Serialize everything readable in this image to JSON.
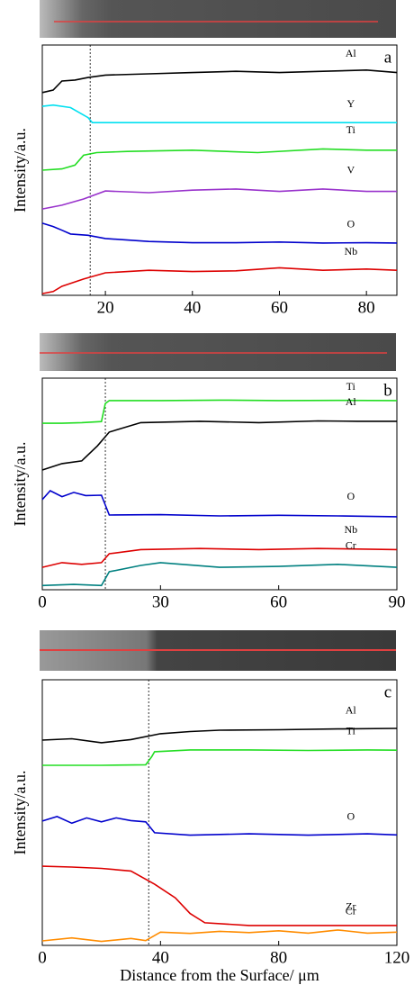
{
  "chart_data": [
    {
      "type": "line",
      "panel_label": "a",
      "ylabel": "Intensity/a.u.",
      "xlim": [
        5.5,
        87
      ],
      "xticks": [
        20,
        40,
        60,
        80
      ],
      "ylim": [
        0,
        100
      ],
      "vline": 16.5,
      "series": [
        {
          "name": "Al",
          "color": "#000000",
          "x": [
            5.5,
            8,
            10,
            13,
            16,
            20,
            30,
            40,
            50,
            60,
            70,
            80,
            87
          ],
          "values": [
            81,
            82,
            85.6,
            86,
            87,
            88,
            88.5,
            89,
            89.5,
            89,
            89.5,
            90,
            89
          ]
        },
        {
          "name": "Y",
          "color": "#00e0f0",
          "x": [
            5.5,
            8,
            12,
            14,
            16,
            17,
            30,
            50,
            70,
            87
          ],
          "values": [
            75.5,
            76,
            75,
            73,
            71,
            69,
            69,
            69,
            69,
            69
          ]
        },
        {
          "name": "Ti",
          "color": "#22dd22",
          "x": [
            5.5,
            10,
            13,
            15,
            18,
            25,
            40,
            55,
            70,
            80,
            87
          ],
          "values": [
            50,
            50.5,
            52,
            56,
            57,
            57.5,
            58,
            57,
            58.5,
            58,
            58
          ]
        },
        {
          "name": "V",
          "color": "#9933cc",
          "x": [
            5.5,
            10,
            15,
            20,
            30,
            40,
            50,
            60,
            70,
            80,
            87
          ],
          "values": [
            34.5,
            36,
            38.5,
            41.7,
            41,
            42,
            42.5,
            41.5,
            42.5,
            41.5,
            41.5
          ]
        },
        {
          "name": "O",
          "color": "#0000cc",
          "x": [
            5.5,
            8,
            10,
            12,
            16,
            20,
            30,
            40,
            50,
            60,
            70,
            80,
            87
          ],
          "values": [
            28.8,
            27.5,
            26,
            24.5,
            24,
            22.7,
            21.5,
            21,
            21,
            21.3,
            20.9,
            21,
            20.9
          ]
        },
        {
          "name": "Nb",
          "color": "#dd0000",
          "x": [
            5.5,
            8,
            10,
            15,
            20,
            30,
            40,
            50,
            60,
            70,
            80,
            87
          ],
          "values": [
            0.7,
            1.5,
            3.6,
            6.5,
            9,
            10,
            9.5,
            9.8,
            11,
            10,
            10.5,
            10
          ]
        }
      ]
    },
    {
      "type": "line",
      "panel_label": "b",
      "ylabel": "Intensity/a.u.",
      "xlim": [
        0,
        90
      ],
      "xticks": [
        0,
        30,
        60,
        90
      ],
      "ylim": [
        0,
        100
      ],
      "vline": 16,
      "series": [
        {
          "name": "Ti",
          "color": "#22dd22",
          "x": [
            0,
            5,
            10,
            15,
            16,
            17,
            30,
            45,
            60,
            75,
            90
          ],
          "values": [
            78.7,
            78.7,
            79,
            79.5,
            88,
            89.4,
            89.4,
            89.6,
            89.4,
            89.5,
            89.4
          ]
        },
        {
          "name": "Al",
          "color": "#000000",
          "x": [
            0,
            5,
            10,
            14,
            17,
            25,
            40,
            55,
            70,
            80,
            90
          ],
          "values": [
            56.6,
            59.6,
            60.9,
            68,
            74.5,
            79,
            79.6,
            79,
            79.8,
            79.6,
            79.6
          ]
        },
        {
          "name": "O",
          "color": "#0000cc",
          "x": [
            0,
            2,
            5,
            8,
            11,
            15,
            17,
            30,
            45,
            60,
            75,
            90
          ],
          "values": [
            42.6,
            46.8,
            44,
            46,
            44.5,
            44.7,
            35.3,
            35.5,
            34.9,
            35.2,
            34.9,
            34.5
          ]
        },
        {
          "name": "Nb",
          "color": "#dd0000",
          "x": [
            0,
            5,
            10,
            15,
            17,
            25,
            40,
            55,
            70,
            90
          ],
          "values": [
            10.6,
            12.8,
            12,
            12.8,
            17,
            19,
            19.5,
            19,
            19.5,
            19
          ]
        },
        {
          "name": "Cr",
          "color": "#008080",
          "x": [
            0,
            8,
            15,
            17,
            25,
            30,
            45,
            60,
            75,
            90
          ],
          "values": [
            2,
            2.5,
            2,
            8.5,
            11.5,
            12.8,
            10.6,
            11,
            12,
            10.6
          ]
        }
      ]
    },
    {
      "type": "line",
      "panel_label": "c",
      "ylabel": "Intensity/a.u.",
      "xlabel": "Distance from the Surface/ μm",
      "xlim": [
        0,
        120
      ],
      "xticks": [
        0,
        40,
        80,
        120
      ],
      "ylim": [
        0,
        100
      ],
      "vline": 36,
      "series": [
        {
          "name": "Al",
          "color": "#000000",
          "x": [
            0,
            10,
            20,
            30,
            40,
            50,
            60,
            80,
            100,
            120
          ],
          "values": [
            77.3,
            77.8,
            76.3,
            77.5,
            79.7,
            80.5,
            81,
            81.2,
            81.5,
            81.7
          ]
        },
        {
          "name": "Ti",
          "color": "#22dd22",
          "x": [
            0,
            20,
            35,
            37,
            38,
            50,
            70,
            90,
            110,
            120
          ],
          "values": [
            67.8,
            67.8,
            68,
            71,
            72.9,
            73.6,
            73.6,
            73.4,
            73.6,
            73.5
          ]
        },
        {
          "name": "O",
          "color": "#0000cc",
          "x": [
            0,
            5,
            10,
            15,
            20,
            25,
            30,
            35,
            38,
            50,
            70,
            90,
            110,
            120
          ],
          "values": [
            46.8,
            48.5,
            46,
            48,
            46.5,
            48,
            47,
            46.5,
            42.4,
            41.5,
            42,
            41.5,
            42,
            41.6
          ]
        },
        {
          "name": "Zr",
          "color": "#dd0000",
          "x": [
            0,
            10,
            20,
            30,
            38,
            45,
            50,
            55,
            70,
            90,
            120
          ],
          "values": [
            29.8,
            29.5,
            29,
            28,
            23,
            17.9,
            12,
            8.5,
            7.5,
            7.5,
            7.5
          ]
        },
        {
          "name": "Cr",
          "color": "#ff8c00",
          "x": [
            0,
            10,
            20,
            30,
            35,
            40,
            50,
            60,
            70,
            80,
            90,
            100,
            110,
            120
          ],
          "values": [
            1.7,
            2.8,
            1.5,
            2.6,
            1.8,
            5,
            4.5,
            5.3,
            4.8,
            5.5,
            4.6,
            5.8,
            4.6,
            5
          ]
        }
      ]
    }
  ]
}
